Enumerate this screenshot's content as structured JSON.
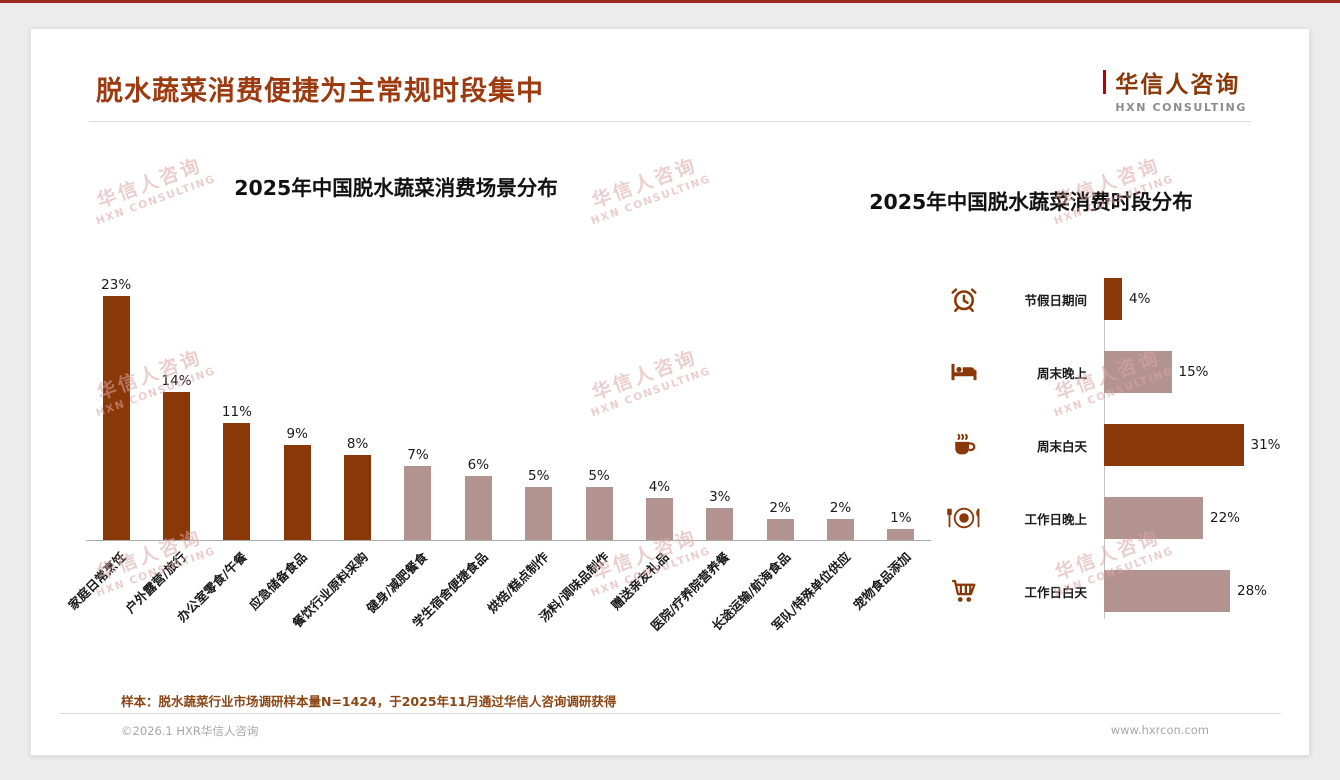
{
  "page": {
    "title": "脱水蔬菜消费便捷为主常规时段集中",
    "logo": {
      "name": "华信人咨询",
      "sub": "HXN CONSULTING"
    },
    "note": "样本：脱水蔬菜行业市场调研样本量N=1424，于2025年11月通过华信人咨询调研获得",
    "footer_left": "©2026.1 HXR华信人咨询",
    "footer_right": "www.hxrcon.com",
    "watermark": {
      "line1": "华信人咨询",
      "line2": "HXN CONSULTING"
    }
  },
  "colors": {
    "dark": "#8a3808",
    "light": "#b29390",
    "title": "#9c3a10",
    "accent": "#c00000"
  },
  "chart_data": [
    {
      "type": "bar",
      "title": "2025年中国脱水蔬菜消费场景分布",
      "unit": "%",
      "categories": [
        "家庭日常烹饪",
        "户外露营/旅行",
        "办公室零食/午餐",
        "应急储备食品",
        "餐饮行业原料采购",
        "健身/减肥餐食",
        "学生宿舍便捷食品",
        "烘焙/糕点制作",
        "汤料/调味品制作",
        "赠送亲友礼品",
        "医院/疗养院营养餐",
        "长途运输/航海食品",
        "军队/特殊单位供应",
        "宠物食品添加"
      ],
      "values": [
        23,
        14,
        11,
        9,
        8,
        7,
        6,
        5,
        5,
        4,
        3,
        2,
        2,
        1
      ],
      "bar_colors": [
        "dark",
        "dark",
        "dark",
        "dark",
        "dark",
        "light",
        "light",
        "light",
        "light",
        "light",
        "light",
        "light",
        "light",
        "light"
      ],
      "ylim": [
        0,
        25
      ],
      "grid": false,
      "legend": "none"
    },
    {
      "type": "bar-horizontal",
      "title": "2025年中国脱水蔬菜消费时段分布",
      "unit": "%",
      "categories": [
        "节假日期间",
        "周末晚上",
        "周末白天",
        "工作日晚上",
        "工作日白天"
      ],
      "values": [
        4,
        15,
        31,
        22,
        28
      ],
      "bar_colors": [
        "dark",
        "light",
        "dark",
        "light",
        "light"
      ],
      "icons": [
        "alarm-clock-icon",
        "bed-icon",
        "coffee-icon",
        "dining-plate-icon",
        "shopping-cart-icon"
      ],
      "xlim": [
        0,
        35
      ],
      "grid": false,
      "legend": "none"
    }
  ]
}
